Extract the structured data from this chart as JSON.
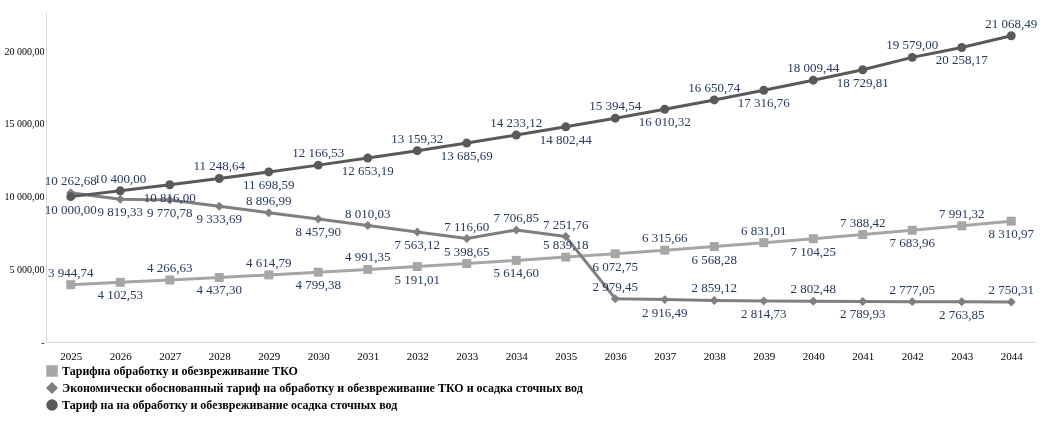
{
  "chart_data": {
    "type": "line",
    "categories": [
      "2025",
      "2026",
      "2027",
      "2028",
      "2029",
      "2030",
      "2031",
      "2032",
      "2033",
      "2034",
      "2035",
      "2036",
      "2037",
      "2038",
      "2039",
      "2040",
      "2041",
      "2042",
      "2043",
      "2044"
    ],
    "series": [
      {
        "name": "Тарифна обработку и обезвреживание ТКО",
        "color": "#a6a6a6",
        "marker": "square",
        "values": [
          3944.74,
          4102.53,
          4266.63,
          4437.3,
          4614.79,
          4799.38,
          4991.35,
          5191.01,
          5398.65,
          5614.6,
          5839.18,
          6072.75,
          6315.66,
          6568.28,
          6831.01,
          7104.25,
          7388.42,
          7683.96,
          7991.32,
          8310.97
        ],
        "value_labels": [
          "3 944,74",
          "4 102,53",
          "4 266,63",
          "4 437,30",
          "4 614,79",
          "4 799,38",
          "4 991,35",
          "5 191,01",
          "5 398,65",
          "5 614,60",
          "5 839,18",
          "6 072,75",
          "6 315,66",
          "6 568,28",
          "6 831,01",
          "7 104,25",
          "7 388,42",
          "7 683,96",
          "7 991,32",
          "8 310,97"
        ]
      },
      {
        "name": "Экономически обоснованный тариф на обработку и обезвреживание ТКО и осадка сточных вод",
        "color": "#7f7f7f",
        "marker": "diamond",
        "values": [
          10262.68,
          9819.33,
          9770.78,
          9333.69,
          8896.99,
          8457.9,
          8010.03,
          7563.12,
          7116.6,
          7706.85,
          7251.76,
          2979.45,
          2916.49,
          2859.12,
          2814.73,
          2802.48,
          2789.93,
          2777.05,
          2763.85,
          2750.31
        ],
        "value_labels": [
          "10 262,68",
          "9 819,33",
          "9 770,78",
          "9 333,69",
          "8 896,99",
          "8 457,90",
          "8 010,03",
          "7 563,12",
          "7 116,60",
          "7 706,85",
          "7 251,76",
          "2 979,45",
          "2 916,49",
          "2 859,12",
          "2 814,73",
          "2 802,48",
          "2 789,93",
          "2 777,05",
          "2 763,85",
          "2 750,31"
        ]
      },
      {
        "name": "Тариф на на обработку и обезвреживание осадка сточных вод",
        "color": "#595959",
        "marker": "circle",
        "values": [
          10000.0,
          10400.0,
          10816.0,
          11248.64,
          11698.59,
          12166.53,
          12653.19,
          13159.32,
          13685.69,
          14233.12,
          14802.44,
          15394.54,
          16010.32,
          16650.74,
          17316.76,
          18009.44,
          18729.81,
          19579.0,
          20258.17,
          21068.49
        ],
        "value_labels": [
          "10 000,00",
          "10 400,00",
          "10 816,00",
          "11 248,64",
          "11 698,59",
          "12 166,53",
          "12 653,19",
          "13 159,32",
          "13 685,69",
          "14 233,12",
          "14 802,44",
          "15 394,54",
          "16 010,32",
          "16 650,74",
          "17 316,76",
          "18 009,44",
          "18 729,81",
          "19 579,00",
          "20 258,17",
          "21 068,49"
        ]
      }
    ],
    "ylim": [
      0,
      22700
    ],
    "yticks": [
      {
        "value": 0,
        "label": "-"
      },
      {
        "value": 5000,
        "label": "5 000,00"
      },
      {
        "value": 10000,
        "label": "10 000,00"
      },
      {
        "value": 15000,
        "label": "15 000,00"
      },
      {
        "value": 20000,
        "label": "20 000,00"
      }
    ],
    "grid": false,
    "legend": "bottom",
    "line_style": "solid"
  }
}
